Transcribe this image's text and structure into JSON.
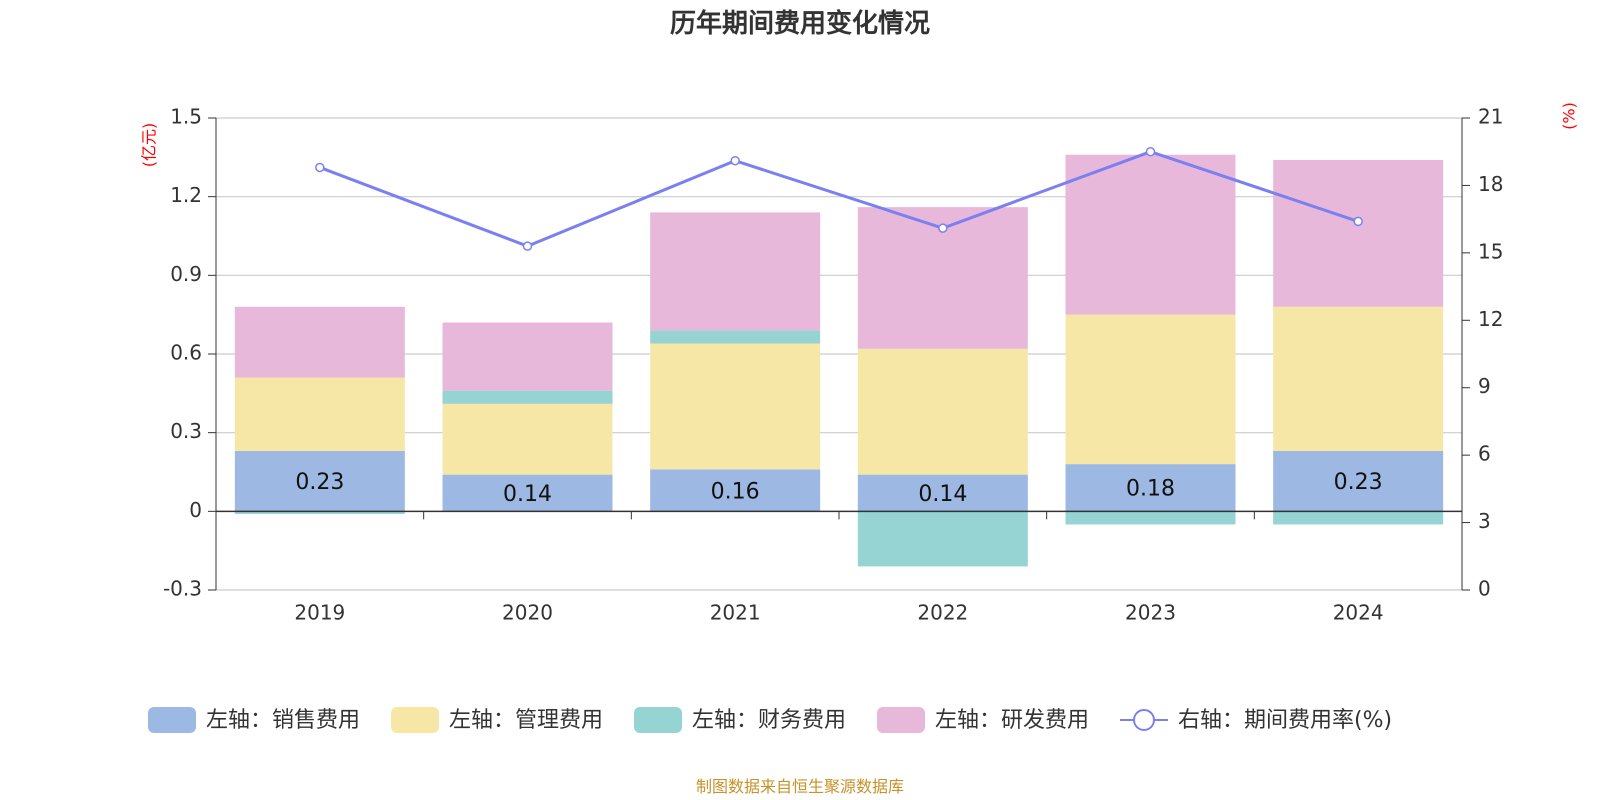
{
  "chart_data": {
    "type": "bar",
    "title": "历年期间费用变化情况",
    "categories": [
      "2019",
      "2020",
      "2021",
      "2022",
      "2023",
      "2024"
    ],
    "left_axis": {
      "unit": "(亿元)",
      "ylim": [
        -0.3,
        1.5
      ],
      "ticks": [
        "1.5",
        "1.2",
        "0.9",
        "0.6",
        "0.3",
        "0",
        "-0.3"
      ]
    },
    "right_axis": {
      "unit": "(%)",
      "ylim": [
        0,
        21
      ],
      "ticks": [
        "21",
        "18",
        "15",
        "12",
        "9",
        "6",
        "3",
        "0"
      ]
    },
    "series": [
      {
        "name": "左轴：销售费用",
        "axis": "left",
        "stack": true,
        "color": "#9db8e2",
        "values": [
          0.23,
          0.14,
          0.16,
          0.14,
          0.18,
          0.23
        ],
        "labels": [
          "0.23",
          "0.14",
          "0.16",
          "0.14",
          "0.18",
          "0.23"
        ]
      },
      {
        "name": "左轴：管理费用",
        "axis": "left",
        "stack": true,
        "color": "#f7e7a6",
        "values": [
          0.28,
          0.27,
          0.48,
          0.48,
          0.57,
          0.55
        ]
      },
      {
        "name": "左轴：财务费用",
        "axis": "left",
        "stack": true,
        "color": "#96d3d3",
        "values": [
          -0.01,
          0.05,
          0.05,
          -0.21,
          -0.05,
          -0.05
        ]
      },
      {
        "name": "左轴：研发费用",
        "axis": "left",
        "stack": true,
        "color": "#e7b8d9",
        "values": [
          0.27,
          0.26,
          0.45,
          0.54,
          0.61,
          0.56
        ]
      },
      {
        "name": "右轴：期间费用率(%)",
        "axis": "right",
        "type": "line",
        "color": "#7a80f0",
        "values": [
          18.8,
          15.3,
          19.1,
          16.1,
          19.5,
          16.4
        ]
      }
    ]
  },
  "source_text": "制图数据来自恒生聚源数据库",
  "source_color": "#c8922a"
}
